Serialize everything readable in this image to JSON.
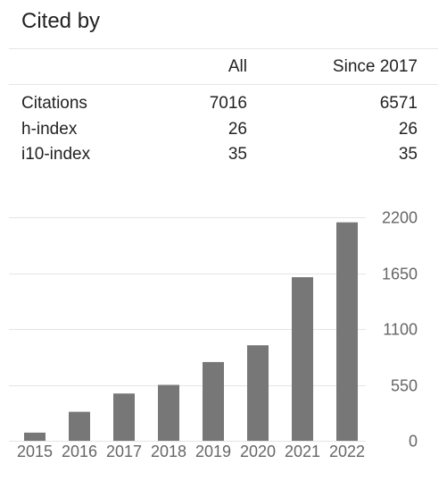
{
  "panel": {
    "title": "Cited by"
  },
  "table": {
    "headers": [
      "",
      "All",
      "Since 2017"
    ],
    "rows": [
      {
        "label": "Citations",
        "all": "7016",
        "since": "6571"
      },
      {
        "label": "h-index",
        "all": "26",
        "since": "26"
      },
      {
        "label": "i10-index",
        "all": "35",
        "since": "35"
      }
    ]
  },
  "colors": {
    "bar": "#777777",
    "grid": "#e5e5e5",
    "tick_text": "#666666"
  },
  "chart_data": {
    "type": "bar",
    "categories": [
      "2015",
      "2016",
      "2017",
      "2018",
      "2019",
      "2020",
      "2021",
      "2022"
    ],
    "values": [
      80,
      285,
      465,
      550,
      775,
      940,
      1610,
      2150
    ],
    "ylim": [
      0,
      2200
    ],
    "yticks": [
      0,
      550,
      1100,
      1650,
      2200
    ],
    "y_axis_side": "right",
    "grid": true,
    "title": "",
    "xlabel": "",
    "ylabel": ""
  }
}
